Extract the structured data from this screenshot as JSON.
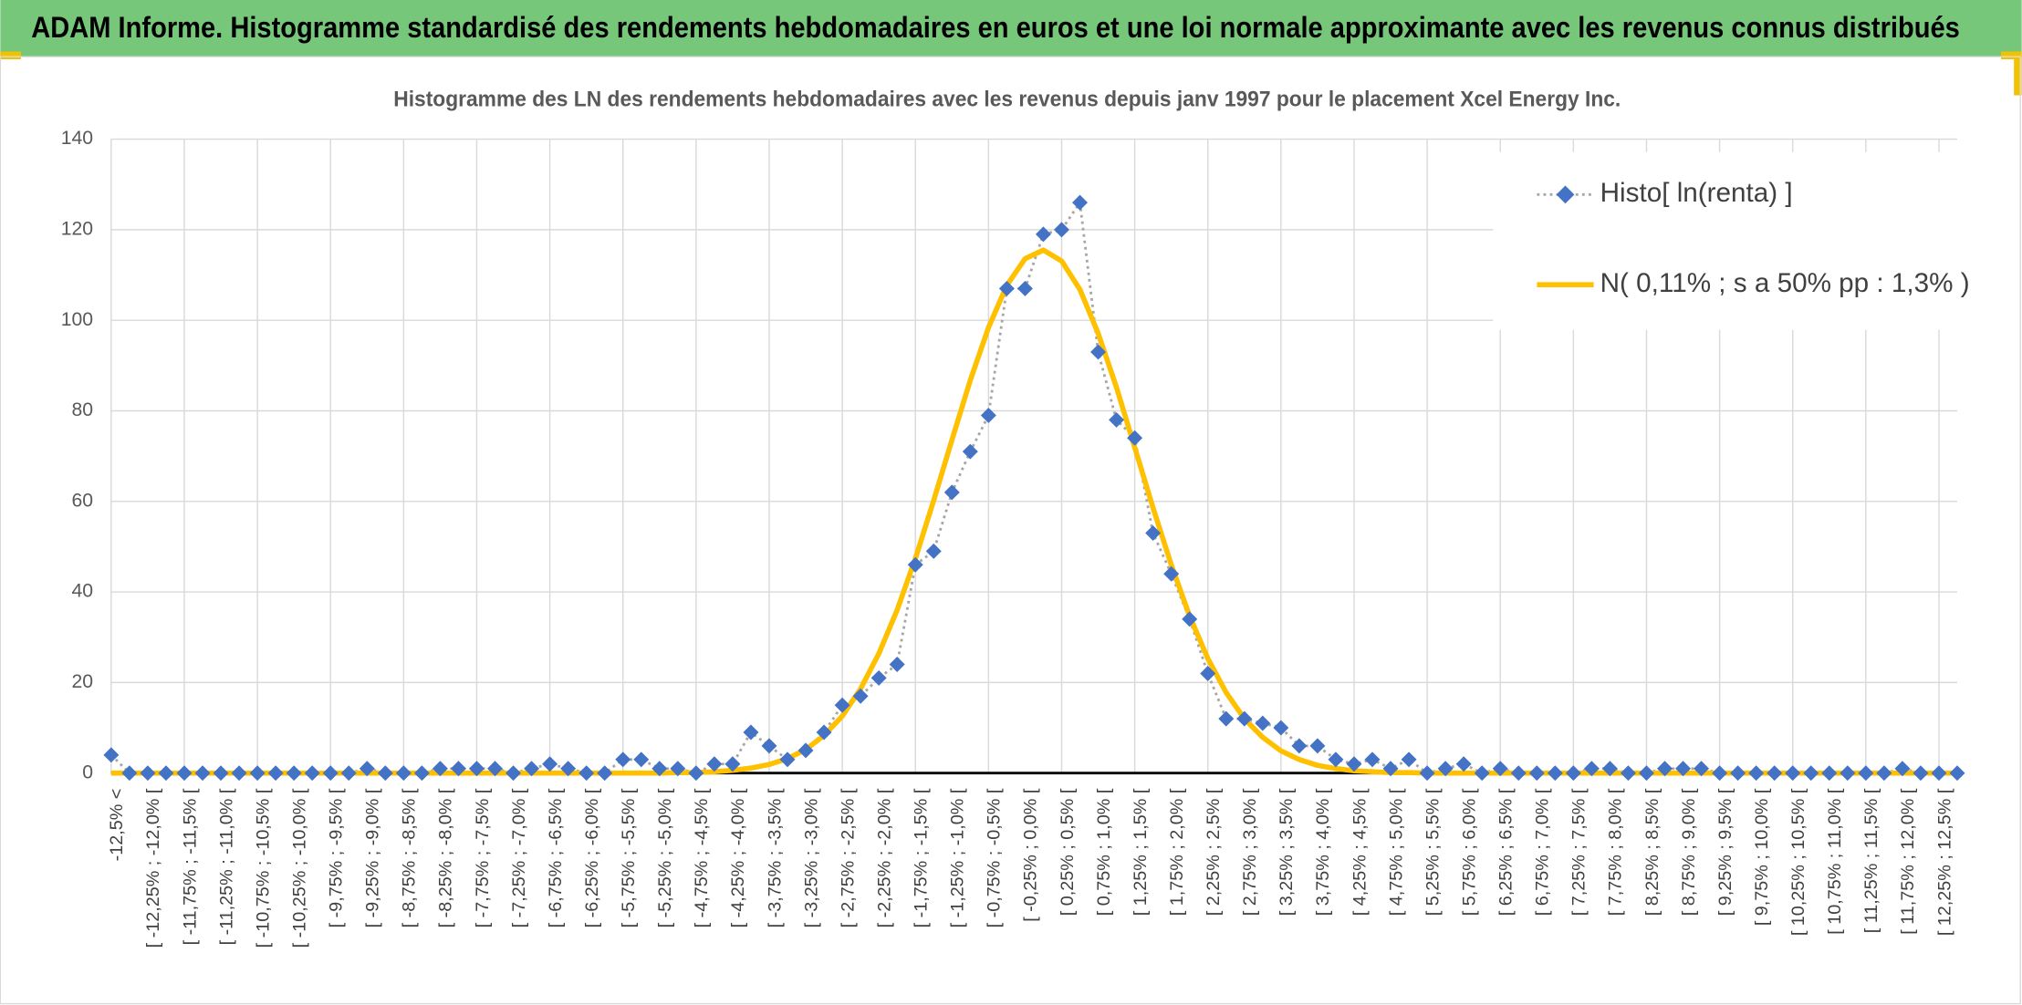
{
  "page_title": "ADAM Informe. Histogramme standardisé des rendements hebdomadaires en euros et une loi normale approximante avec les revenus connus distribués",
  "chart_data": {
    "type": "line",
    "title": "Histogramme des LN des rendements hebdomadaires avec les revenus depuis janv 1997 pour le placement Xcel Energy Inc.",
    "categories": [
      "-12,5% <",
      null,
      "[ -12,25% ; -12,0% [",
      null,
      "[ -11,75% ; -11,5% [",
      null,
      "[ -11,25% ; -11,0% [",
      null,
      "[ -10,75% ; -10,5% [",
      null,
      "[ -10,25% ; -10,0% [",
      null,
      "[ -9,75% ; -9,5% [",
      null,
      "[ -9,25% ; -9,0% [",
      null,
      "[ -8,75% ; -8,5% [",
      null,
      "[ -8,25% ; -8,0% [",
      null,
      "[ -7,75% ; -7,5% [",
      null,
      "[ -7,25% ; -7,0% [",
      null,
      "[ -6,75% ; -6,5% [",
      null,
      "[ -6,25% ; -6,0% [",
      null,
      "[ -5,75% ; -5,5% [",
      null,
      "[ -5,25% ; -5,0% [",
      null,
      "[ -4,75% ; -4,5% [",
      null,
      "[ -4,25% ; -4,0% [",
      null,
      "[ -3,75% ; -3,5% [",
      null,
      "[ -3,25% ; -3,0% [",
      null,
      "[ -2,75% ; -2,5% [",
      null,
      "[ -2,25% ; -2,0% [",
      null,
      "[ -1,75% ; -1,5% [",
      null,
      "[ -1,25% ; -1,0% [",
      null,
      "[ -0,75% ; -0,5% [",
      null,
      "[ -0,25% ; 0,0% [",
      null,
      "[ 0,25% ; 0,5% [",
      null,
      "[ 0,75% ; 1,0% [",
      null,
      "[ 1,25% ; 1,5% [",
      null,
      "[ 1,75% ; 2,0% [",
      null,
      "[ 2,25% ; 2,5% [",
      null,
      "[ 2,75% ; 3,0% [",
      null,
      "[ 3,25% ; 3,5% [",
      null,
      "[ 3,75% ; 4,0% [",
      null,
      "[ 4,25% ; 4,5% [",
      null,
      "[ 4,75% ; 5,0% [",
      null,
      "[ 5,25% ; 5,5% [",
      null,
      "[ 5,75% ; 6,0% [",
      null,
      "[ 6,25% ; 6,5% [",
      null,
      "[ 6,75% ; 7,0% [",
      null,
      "[ 7,25% ; 7,5% [",
      null,
      "[ 7,75% ; 8,0% [",
      null,
      "[ 8,25% ; 8,5% [",
      null,
      "[ 8,75% ; 9,0% [",
      null,
      "[ 9,25% ; 9,5% [",
      null,
      "[ 9,75% ; 10,0% [",
      null,
      "[ 10,25% ; 10,5% [",
      null,
      "[ 10,75% ; 11,0% [",
      null,
      "[ 11,25% ; 11,5% [",
      null,
      "[ 11,75% ; 12,0% [",
      null,
      "[ 12,25% ; 12,5% [",
      null
    ],
    "series": [
      {
        "name": "Histo[ ln(renta) ]",
        "color": "#4472c4",
        "line_color": "#a6a6a6",
        "values": [
          4,
          0,
          0,
          0,
          0,
          0,
          0,
          0,
          0,
          0,
          0,
          0,
          0,
          0,
          1,
          0,
          0,
          0,
          1,
          1,
          1,
          1,
          0,
          1,
          2,
          1,
          0,
          0,
          3,
          3,
          1,
          1,
          0,
          2,
          2,
          9,
          6,
          3,
          5,
          9,
          15,
          17,
          21,
          24,
          46,
          49,
          62,
          71,
          79,
          107,
          107,
          119,
          120,
          126,
          93,
          78,
          74,
          53,
          44,
          34,
          22,
          12,
          12,
          11,
          10,
          6,
          6,
          3,
          2,
          3,
          1,
          3,
          0,
          1,
          2,
          0,
          1,
          0,
          0,
          0,
          0,
          1,
          1,
          0,
          0,
          1,
          1,
          1,
          0,
          0,
          0,
          0,
          0,
          0,
          0,
          0,
          0,
          0,
          1,
          0,
          0,
          0
        ]
      },
      {
        "name": "N( 0,11% ; s a 50% pp : 1,3% )",
        "color": "#ffc000",
        "values": [
          0,
          0,
          0,
          0,
          0,
          0,
          0,
          0,
          0,
          0,
          0,
          0,
          0,
          0,
          0,
          0,
          0,
          0,
          0,
          0,
          0,
          0,
          0,
          0,
          0,
          0,
          0,
          0,
          0,
          0,
          0,
          0.1,
          0.1,
          0.3,
          0.6,
          1.1,
          1.9,
          3.2,
          5.2,
          8.3,
          12.6,
          18.6,
          26.4,
          36.0,
          47.4,
          60.2,
          73.6,
          86.7,
          98.4,
          107.7,
          113.6,
          115.5,
          113.1,
          106.8,
          97.1,
          85.2,
          71.9,
          58.6,
          46.0,
          34.7,
          25.3,
          17.8,
          12.0,
          7.9,
          4.9,
          3.0,
          1.7,
          1.0,
          0.5,
          0.3,
          0.1,
          0.1,
          0,
          0,
          0,
          0,
          0,
          0,
          0,
          0,
          0,
          0,
          0,
          0,
          0,
          0,
          0,
          0,
          0,
          0,
          0,
          0,
          0,
          0,
          0,
          0,
          0,
          0,
          0,
          0,
          0,
          0
        ]
      }
    ],
    "ylim": [
      0,
      140
    ],
    "yticks": [
      0,
      20,
      40,
      60,
      80,
      100,
      120,
      140
    ],
    "grid": true
  }
}
